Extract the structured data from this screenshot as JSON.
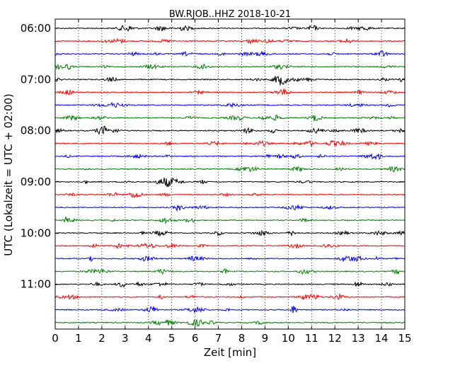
{
  "chart_data": {
    "type": "line",
    "title": "BW.RJOB..HHZ 2018-10-21",
    "xlabel": "Zeit  [min]",
    "ylabel": "UTC (Lokalzeit = UTC + 02:00)",
    "xlim": [
      0,
      15
    ],
    "x_ticks": [
      "0",
      "1",
      "2",
      "3",
      "4",
      "5",
      "6",
      "7",
      "8",
      "9",
      "10",
      "11",
      "12",
      "13",
      "14",
      "15"
    ],
    "y_tick_labels": [
      "06:00",
      "07:00",
      "08:00",
      "09:00",
      "10:00",
      "11:00"
    ],
    "grid": {
      "vertical_dotted": true
    },
    "trace_colors": [
      "#000000",
      "#ff0000",
      "#0000ff",
      "#008000"
    ],
    "traces_start_utc": [
      "06:00",
      "06:15",
      "06:30",
      "06:45",
      "07:00",
      "07:15",
      "07:30",
      "07:45",
      "08:00",
      "08:15",
      "08:30",
      "08:45",
      "09:00",
      "09:15",
      "09:30",
      "09:45",
      "10:00",
      "10:15",
      "10:30",
      "10:45",
      "11:00",
      "11:15",
      "11:30",
      "11:45"
    ]
  }
}
